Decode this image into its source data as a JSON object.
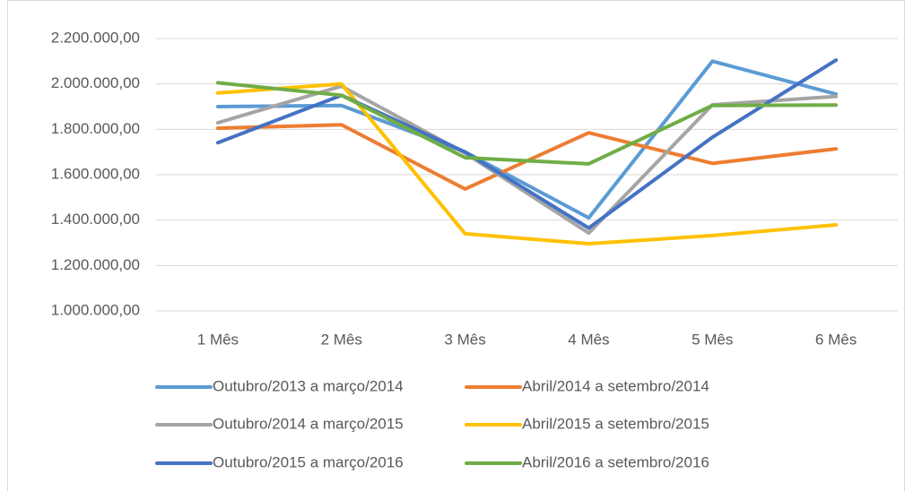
{
  "chart_data": {
    "type": "line",
    "categories": [
      "1 Mês",
      "2 Mês",
      "3 Mês",
      "4 Mês",
      "5 Mês",
      "6 Mês"
    ],
    "series": [
      {
        "name": "Outubro/2013 a março/2014",
        "color": "#5b9bd5",
        "values": [
          1900000,
          1905000,
          1700000,
          1410000,
          2100000,
          1955000
        ]
      },
      {
        "name": "Abril/2014 a setembro/2014",
        "color": "#ed7d31",
        "values": [
          1805000,
          1820000,
          1537000,
          1785000,
          1650000,
          1714000
        ]
      },
      {
        "name": "Outubro/2014 a março/2015",
        "color": "#a5a5a5",
        "values": [
          1829000,
          1990000,
          1695000,
          1343000,
          1908000,
          1945000
        ]
      },
      {
        "name": "Abril/2015 a setembro/2015",
        "color": "#ffc000",
        "values": [
          1960000,
          2000000,
          1340000,
          1296000,
          1332000,
          1379000
        ]
      },
      {
        "name": "Outubro/2015 a março/2016",
        "color": "#4472c4",
        "values": [
          1741000,
          1950000,
          1700000,
          1365000,
          1765000,
          2105000
        ]
      },
      {
        "name": "Abril/2016 a setembro/2016",
        "color": "#70ad47",
        "values": [
          2005000,
          1950000,
          1675000,
          1648000,
          1905000,
          1907000
        ]
      }
    ],
    "ylim": [
      1000000,
      2200000
    ],
    "yticks": [
      {
        "value": 1000000,
        "label": "1.000.000,00"
      },
      {
        "value": 1200000,
        "label": "1.200.000,00"
      },
      {
        "value": 1400000,
        "label": "1.400.000,00"
      },
      {
        "value": 1600000,
        "label": "1.600.000,00"
      },
      {
        "value": 1800000,
        "label": "1.800.000,00"
      },
      {
        "value": 2000000,
        "label": "2.000.000,00"
      },
      {
        "value": 2200000,
        "label": "2.200.000,00"
      }
    ],
    "grid": true,
    "legend": "bottom"
  }
}
